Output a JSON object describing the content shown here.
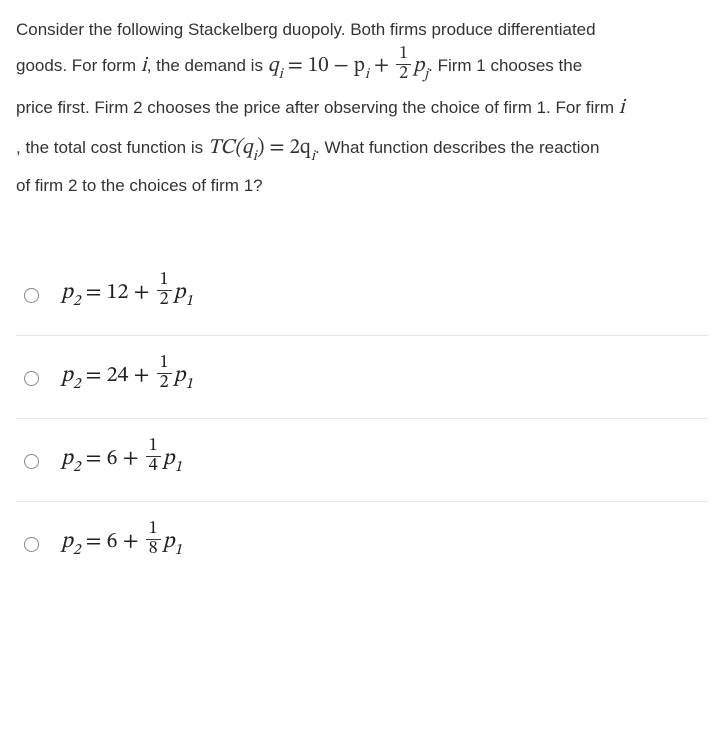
{
  "question": {
    "part1": "Consider the following Stackelberg duopoly. Both firms produce differentiated",
    "part2a": "goods. For form ",
    "demand_eq_lhs": "q",
    "demand_eq_sub_i": "i",
    "demand_eq_rhs_a": " = 10 − p",
    "demand_eq_rhs_b": " + ",
    "frac1_num": "1",
    "frac1_den": "2",
    "demand_eq_rhs_c": "p",
    "demand_eq_sub_j": "j",
    "part2b": ", the demand is ",
    "part2c": ". Firm 1 chooses the",
    "part3a": "price first. Firm 2 chooses the price after observing the choice of firm 1. For firm ",
    "part4a": ", the total cost function is ",
    "tc_eq": "TC(q",
    "tc_eq2": ") = 2q",
    "part4b": ". What function describes the reaction",
    "part5": "of firm 2 to the choices of firm 1?",
    "i_var": "i"
  },
  "options": [
    {
      "lhs_sub": "2",
      "const": "12",
      "frac_num": "1",
      "frac_den": "2",
      "rhs_sub": "1"
    },
    {
      "lhs_sub": "2",
      "const": "24",
      "frac_num": "1",
      "frac_den": "2",
      "rhs_sub": "1"
    },
    {
      "lhs_sub": "2",
      "const": "6",
      "frac_num": "1",
      "frac_den": "4",
      "rhs_sub": "1"
    },
    {
      "lhs_sub": "2",
      "const": "6",
      "frac_num": "1",
      "frac_den": "8",
      "rhs_sub": "1"
    }
  ]
}
